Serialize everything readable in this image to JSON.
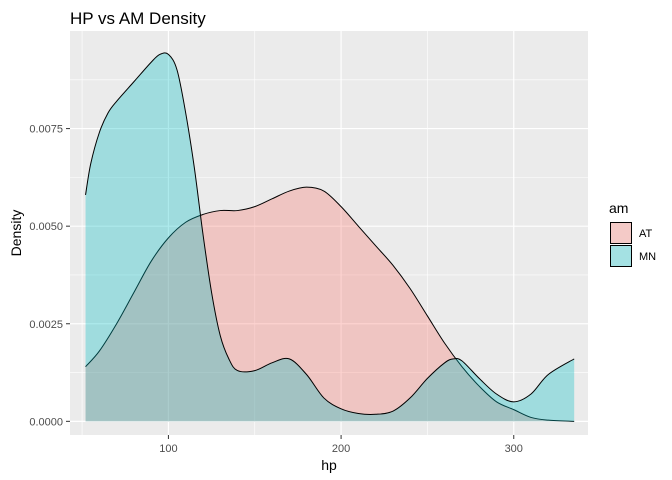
{
  "chart_data": {
    "type": "area",
    "title": "HP vs AM Density",
    "xlabel": "hp",
    "ylabel": "Density",
    "xlim": [
      43,
      343
    ],
    "ylim": [
      -0.00035,
      0.01
    ],
    "x_ticks": [
      {
        "value": 100,
        "label": "100"
      },
      {
        "value": 200,
        "label": "200"
      },
      {
        "value": 300,
        "label": "300"
      }
    ],
    "y_ticks": [
      {
        "value": 0.0,
        "label": "0.0000"
      },
      {
        "value": 0.0025,
        "label": "0.0025"
      },
      {
        "value": 0.005,
        "label": "0.0050"
      },
      {
        "value": 0.0075,
        "label": "0.0075"
      }
    ],
    "grid": true,
    "legend": {
      "title": "am",
      "placement": "right",
      "entries": [
        {
          "label": "AT",
          "color": "#F8766D"
        },
        {
          "label": "MN",
          "color": "#00BFC4"
        }
      ]
    },
    "series": [
      {
        "name": "AT",
        "color": "#F8766D",
        "x": [
          52,
          60,
          70,
          80,
          90,
          100,
          110,
          120,
          130,
          140,
          150,
          160,
          170,
          180,
          190,
          200,
          210,
          220,
          230,
          240,
          250,
          260,
          270,
          280,
          290,
          300,
          310,
          320,
          335
        ],
        "y": [
          0.0014,
          0.0018,
          0.0025,
          0.0033,
          0.0041,
          0.0047,
          0.0051,
          0.0053,
          0.0054,
          0.0054,
          0.0055,
          0.0057,
          0.0059,
          0.006,
          0.0059,
          0.0055,
          0.005,
          0.0045,
          0.004,
          0.0034,
          0.0027,
          0.002,
          0.0014,
          0.0009,
          0.0005,
          0.0003,
          0.0001,
          3e-05,
          0.0
        ]
      },
      {
        "name": "MN",
        "color": "#00BFC4",
        "x": [
          52,
          55,
          60,
          65,
          70,
          80,
          90,
          95,
          100,
          105,
          110,
          115,
          120,
          125,
          130,
          135,
          140,
          150,
          160,
          170,
          180,
          190,
          200,
          210,
          220,
          230,
          240,
          250,
          260,
          265,
          270,
          280,
          290,
          300,
          310,
          320,
          335
        ],
        "y": [
          0.0058,
          0.0066,
          0.0074,
          0.0079,
          0.0082,
          0.0087,
          0.0092,
          0.0094,
          0.0094,
          0.009,
          0.0079,
          0.0065,
          0.0048,
          0.0033,
          0.0022,
          0.0016,
          0.0013,
          0.0013,
          0.0015,
          0.0016,
          0.0012,
          0.0006,
          0.00032,
          0.0002,
          0.00018,
          0.00026,
          0.0006,
          0.0011,
          0.0015,
          0.0016,
          0.00155,
          0.0011,
          0.0007,
          0.0005,
          0.0007,
          0.0012,
          0.0016
        ]
      }
    ]
  }
}
